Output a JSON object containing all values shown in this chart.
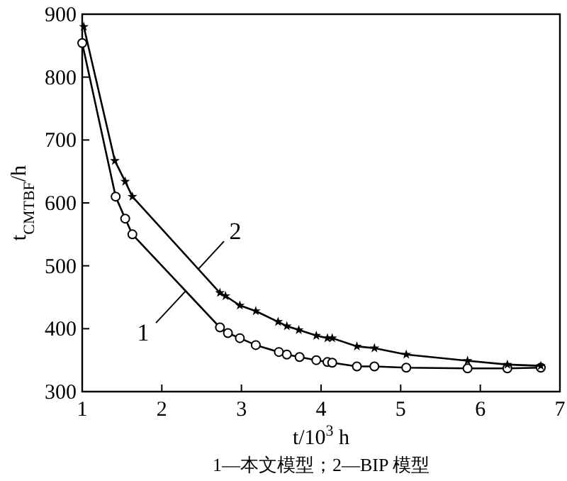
{
  "chart_data": {
    "type": "line",
    "xlabel": "t/10$^{3}$ h",
    "ylabel": "t$_{CMTBF}$/h",
    "annotations": [
      {
        "text": "1",
        "x": 2.3,
        "y": 460
      },
      {
        "text": "2",
        "x": 2.46,
        "y": 495
      },
      "1—本文模型；2—BIP 模型"
    ],
    "xlim": [
      1,
      7
    ],
    "ylim": [
      300,
      900
    ],
    "xticks": [
      1,
      2,
      3,
      4,
      5,
      6,
      7
    ],
    "yticks": [
      300,
      400,
      500,
      600,
      700,
      800,
      900
    ],
    "grid": false,
    "line_style": "solid",
    "series": [
      {
        "color": "#000000",
        "marker": "circle",
        "x": [
          1.0,
          1.42,
          1.54,
          1.63,
          2.73,
          2.83,
          2.98,
          3.18,
          3.47,
          3.57,
          3.73,
          3.94,
          4.08,
          4.14,
          4.45,
          4.67,
          5.07,
          5.84,
          6.34,
          6.76
        ],
        "values": [
          854,
          610,
          575,
          550,
          402,
          393,
          385,
          374,
          363,
          359,
          355,
          350,
          347,
          346,
          340,
          340,
          338,
          337,
          337,
          338
        ]
      },
      {
        "color": "#000000",
        "marker": "star",
        "x": [
          1.02,
          1.41,
          1.54,
          1.63,
          2.73,
          2.8,
          2.98,
          3.18,
          3.46,
          3.57,
          3.72,
          3.94,
          4.08,
          4.14,
          4.45,
          4.67,
          5.07,
          5.84,
          6.34,
          6.76
        ],
        "values": [
          880,
          667,
          634,
          610,
          457,
          452,
          437,
          428,
          411,
          404,
          398,
          389,
          385,
          385,
          372,
          369,
          359,
          349,
          343,
          341
        ]
      }
    ]
  }
}
